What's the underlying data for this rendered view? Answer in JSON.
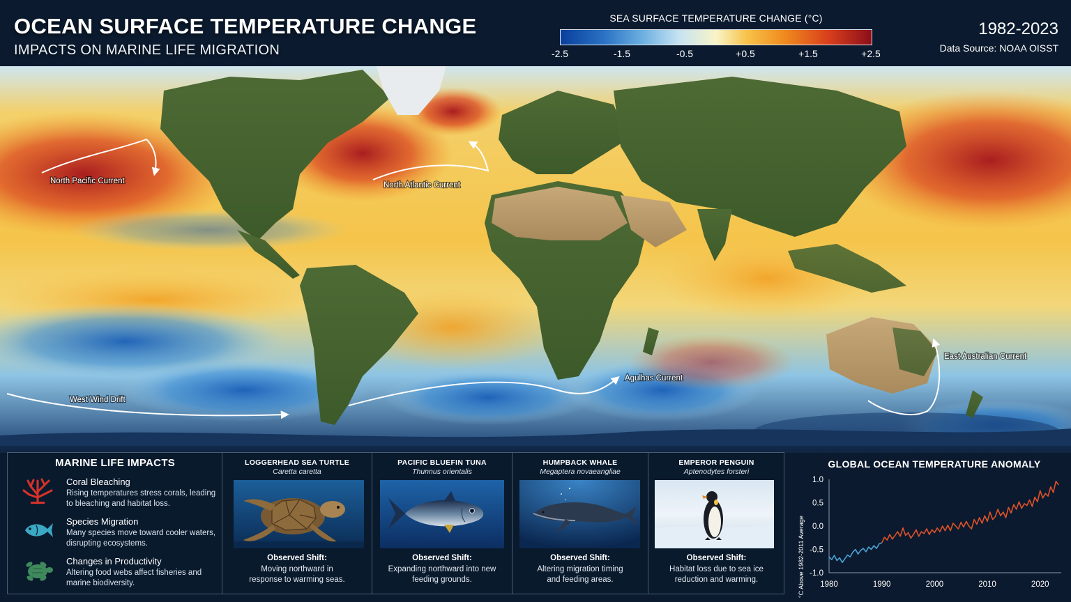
{
  "header": {
    "title": "OCEAN SURFACE TEMPERATURE CHANGE",
    "subtitle": "IMPACTS ON MARINE LIFE MIGRATION",
    "years": "1982-2023",
    "source": "Data Source: NOAA OISST"
  },
  "legend": {
    "title": "SEA SURFACE TEMPERATURE CHANGE (°C)",
    "ticks": [
      "-2.5",
      "-1.5",
      "-0.5",
      "+0.5",
      "+1.5",
      "+2.5"
    ],
    "range": [
      -2.5,
      2.5
    ],
    "colors": [
      "#0a3f9c",
      "#2a72c4",
      "#6aaee0",
      "#c6e3f2",
      "#f8f4c8",
      "#f7c248",
      "#f08a1e",
      "#d9401c",
      "#8c0e1a"
    ]
  },
  "map": {
    "currents": [
      {
        "label": "North Pacific Current"
      },
      {
        "label": "North Atlantic Current"
      },
      {
        "label": "West Wind Drift"
      },
      {
        "label": "Agulhas Current"
      },
      {
        "label": "East Australian Current"
      }
    ]
  },
  "impacts": {
    "title": "MARINE LIFE IMPACTS",
    "items": [
      {
        "heading": "Coral Bleaching",
        "body": "Rising temperatures stress corals, leading to bleaching and habitat loss.",
        "icon": "coral-icon",
        "color": "#d8322a"
      },
      {
        "heading": "Species Migration",
        "body": "Many species move toward cooler waters, disrupting ecosystems.",
        "icon": "fish-icon",
        "color": "#3aa9c4"
      },
      {
        "heading": "Changes in Productivity",
        "body": "Altering food webs affect fisheries and marine biodiversity.",
        "icon": "turtle-icon",
        "color": "#3f8a5c"
      }
    ]
  },
  "species": [
    {
      "name": "LOGGERHEAD SEA TURTLE",
      "latin": "Caretta caretta",
      "shift_heading": "Observed Shift:",
      "shift": "Moving northward in response to warming seas.",
      "image": "sea-turtle"
    },
    {
      "name": "PACIFIC BLUEFIN TUNA",
      "latin": "Thunnus orientalis",
      "shift_heading": "Observed Shift:",
      "shift": "Expanding northward into new feeding grounds.",
      "image": "tuna"
    },
    {
      "name": "HUMPBACK WHALE",
      "latin": "Megaptera novaeangliae",
      "shift_heading": "Observed Shift:",
      "shift": "Altering migration timing and feeding areas.",
      "image": "whale"
    },
    {
      "name": "EMPEROR PENGUIN",
      "latin": "Aptenodytes forsteri",
      "shift_heading": "Observed Shift:",
      "shift": "Habitat loss due to sea ice reduction and warming.",
      "image": "penguin"
    }
  ],
  "chart_data": {
    "type": "line",
    "title": "GLOBAL OCEAN TEMPERATURE ANOMALY",
    "ylabel": "°C Above 1982-2011 Average",
    "xlabel": "",
    "xlim": [
      1980,
      2024
    ],
    "ylim": [
      -1.0,
      1.0
    ],
    "xticks": [
      1980,
      1990,
      2000,
      2010,
      2020
    ],
    "yticks": [
      "1.0",
      "0.5",
      "0.0",
      "-0.5",
      "-1.0"
    ],
    "ytick_values": [
      1.0,
      0.5,
      0.0,
      -0.5,
      -1.0
    ],
    "grid": false,
    "series": [
      {
        "color": "#4aa3d8",
        "x": [
          1980,
          1980.5,
          1981,
          1981.5,
          1982,
          1982.5,
          1983,
          1983.5,
          1984,
          1984.5,
          1985,
          1985.5,
          1986,
          1986.5,
          1987,
          1987.5,
          1988,
          1988.5,
          1989,
          1989.5,
          1990
        ],
        "y": [
          -0.66,
          -0.72,
          -0.63,
          -0.74,
          -0.68,
          -0.78,
          -0.7,
          -0.62,
          -0.66,
          -0.56,
          -0.5,
          -0.6,
          -0.52,
          -0.48,
          -0.55,
          -0.45,
          -0.5,
          -0.42,
          -0.48,
          -0.38,
          -0.36
        ]
      },
      {
        "color": "#e0522a",
        "x": [
          1990,
          1990.5,
          1991,
          1991.5,
          1992,
          1992.5,
          1993,
          1993.5,
          1994,
          1994.5,
          1995,
          1995.5,
          1996,
          1996.5,
          1997,
          1997.5,
          1998,
          1998.5,
          1999,
          1999.5,
          2000,
          2000.5,
          2001,
          2001.5,
          2002,
          2002.5,
          2003,
          2003.5,
          2004,
          2004.5,
          2005,
          2005.5,
          2006,
          2006.5,
          2007,
          2007.5,
          2008,
          2008.5,
          2009,
          2009.5,
          2010,
          2010.5,
          2011,
          2011.5,
          2012,
          2012.5,
          2013,
          2013.5,
          2014,
          2014.5,
          2015,
          2015.5,
          2016,
          2016.5,
          2017,
          2017.5,
          2018,
          2018.5,
          2019,
          2019.5,
          2020,
          2020.5,
          2021,
          2021.5,
          2022,
          2022.5,
          2023,
          2023.5
        ],
        "y": [
          -0.36,
          -0.24,
          -0.3,
          -0.18,
          -0.28,
          -0.2,
          -0.12,
          -0.22,
          -0.04,
          -0.2,
          -0.14,
          -0.26,
          -0.18,
          -0.08,
          -0.22,
          -0.12,
          -0.16,
          -0.06,
          -0.18,
          -0.08,
          -0.14,
          -0.04,
          -0.12,
          0.0,
          -0.1,
          0.02,
          -0.1,
          0.06,
          0.0,
          -0.06,
          0.08,
          -0.02,
          0.1,
          0.0,
          -0.06,
          0.14,
          0.04,
          0.18,
          0.06,
          0.22,
          0.1,
          0.3,
          0.14,
          0.2,
          0.36,
          0.22,
          0.3,
          0.18,
          0.4,
          0.28,
          0.46,
          0.36,
          0.52,
          0.38,
          0.48,
          0.44,
          0.56,
          0.42,
          0.62,
          0.52,
          0.76,
          0.6,
          0.7,
          0.64,
          0.84,
          0.72,
          0.96,
          0.88
        ]
      }
    ]
  }
}
